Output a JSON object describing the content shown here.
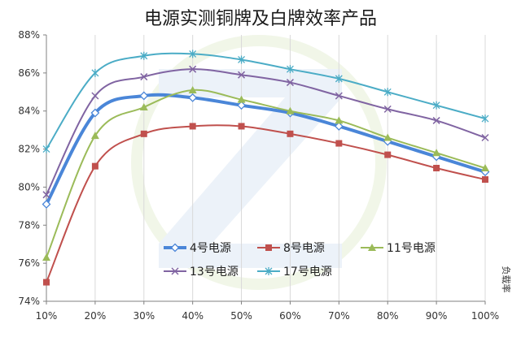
{
  "chart_data": {
    "type": "line",
    "title": "电源实测铜牌及白牌效率产品",
    "xlabel": "负载率",
    "ylabel": "",
    "categories": [
      "10%",
      "20%",
      "30%",
      "40%",
      "50%",
      "60%",
      "70%",
      "80%",
      "90%",
      "100%"
    ],
    "y_ticks": [
      "74%",
      "76%",
      "78%",
      "80%",
      "82%",
      "84%",
      "86%",
      "88%"
    ],
    "ylim": [
      74,
      88
    ],
    "grid": "vertical",
    "legend": "bottom-center, inside plot",
    "series": [
      {
        "name": "4号电源",
        "color": "#4a86d8",
        "marker": "diamond-open",
        "values": [
          79.1,
          83.9,
          84.8,
          84.7,
          84.3,
          83.9,
          83.2,
          82.4,
          81.6,
          80.8
        ]
      },
      {
        "name": "8号电源",
        "color": "#c0504d",
        "marker": "square",
        "values": [
          75.0,
          81.1,
          82.8,
          83.2,
          83.2,
          82.8,
          82.3,
          81.7,
          81.0,
          80.4
        ]
      },
      {
        "name": "11号电源",
        "color": "#9bbb59",
        "marker": "triangle",
        "values": [
          76.3,
          82.7,
          84.2,
          85.1,
          84.6,
          84.0,
          83.5,
          82.6,
          81.8,
          81.0
        ]
      },
      {
        "name": "13号电源",
        "color": "#8064a2",
        "marker": "x",
        "values": [
          79.6,
          84.8,
          85.8,
          86.2,
          85.9,
          85.5,
          84.8,
          84.1,
          83.5,
          82.6
        ]
      },
      {
        "name": "17号电源",
        "color": "#4bacc6",
        "marker": "star",
        "values": [
          82.0,
          86.0,
          86.9,
          87.0,
          86.7,
          86.2,
          85.7,
          85.0,
          84.3,
          83.6
        ]
      }
    ]
  }
}
